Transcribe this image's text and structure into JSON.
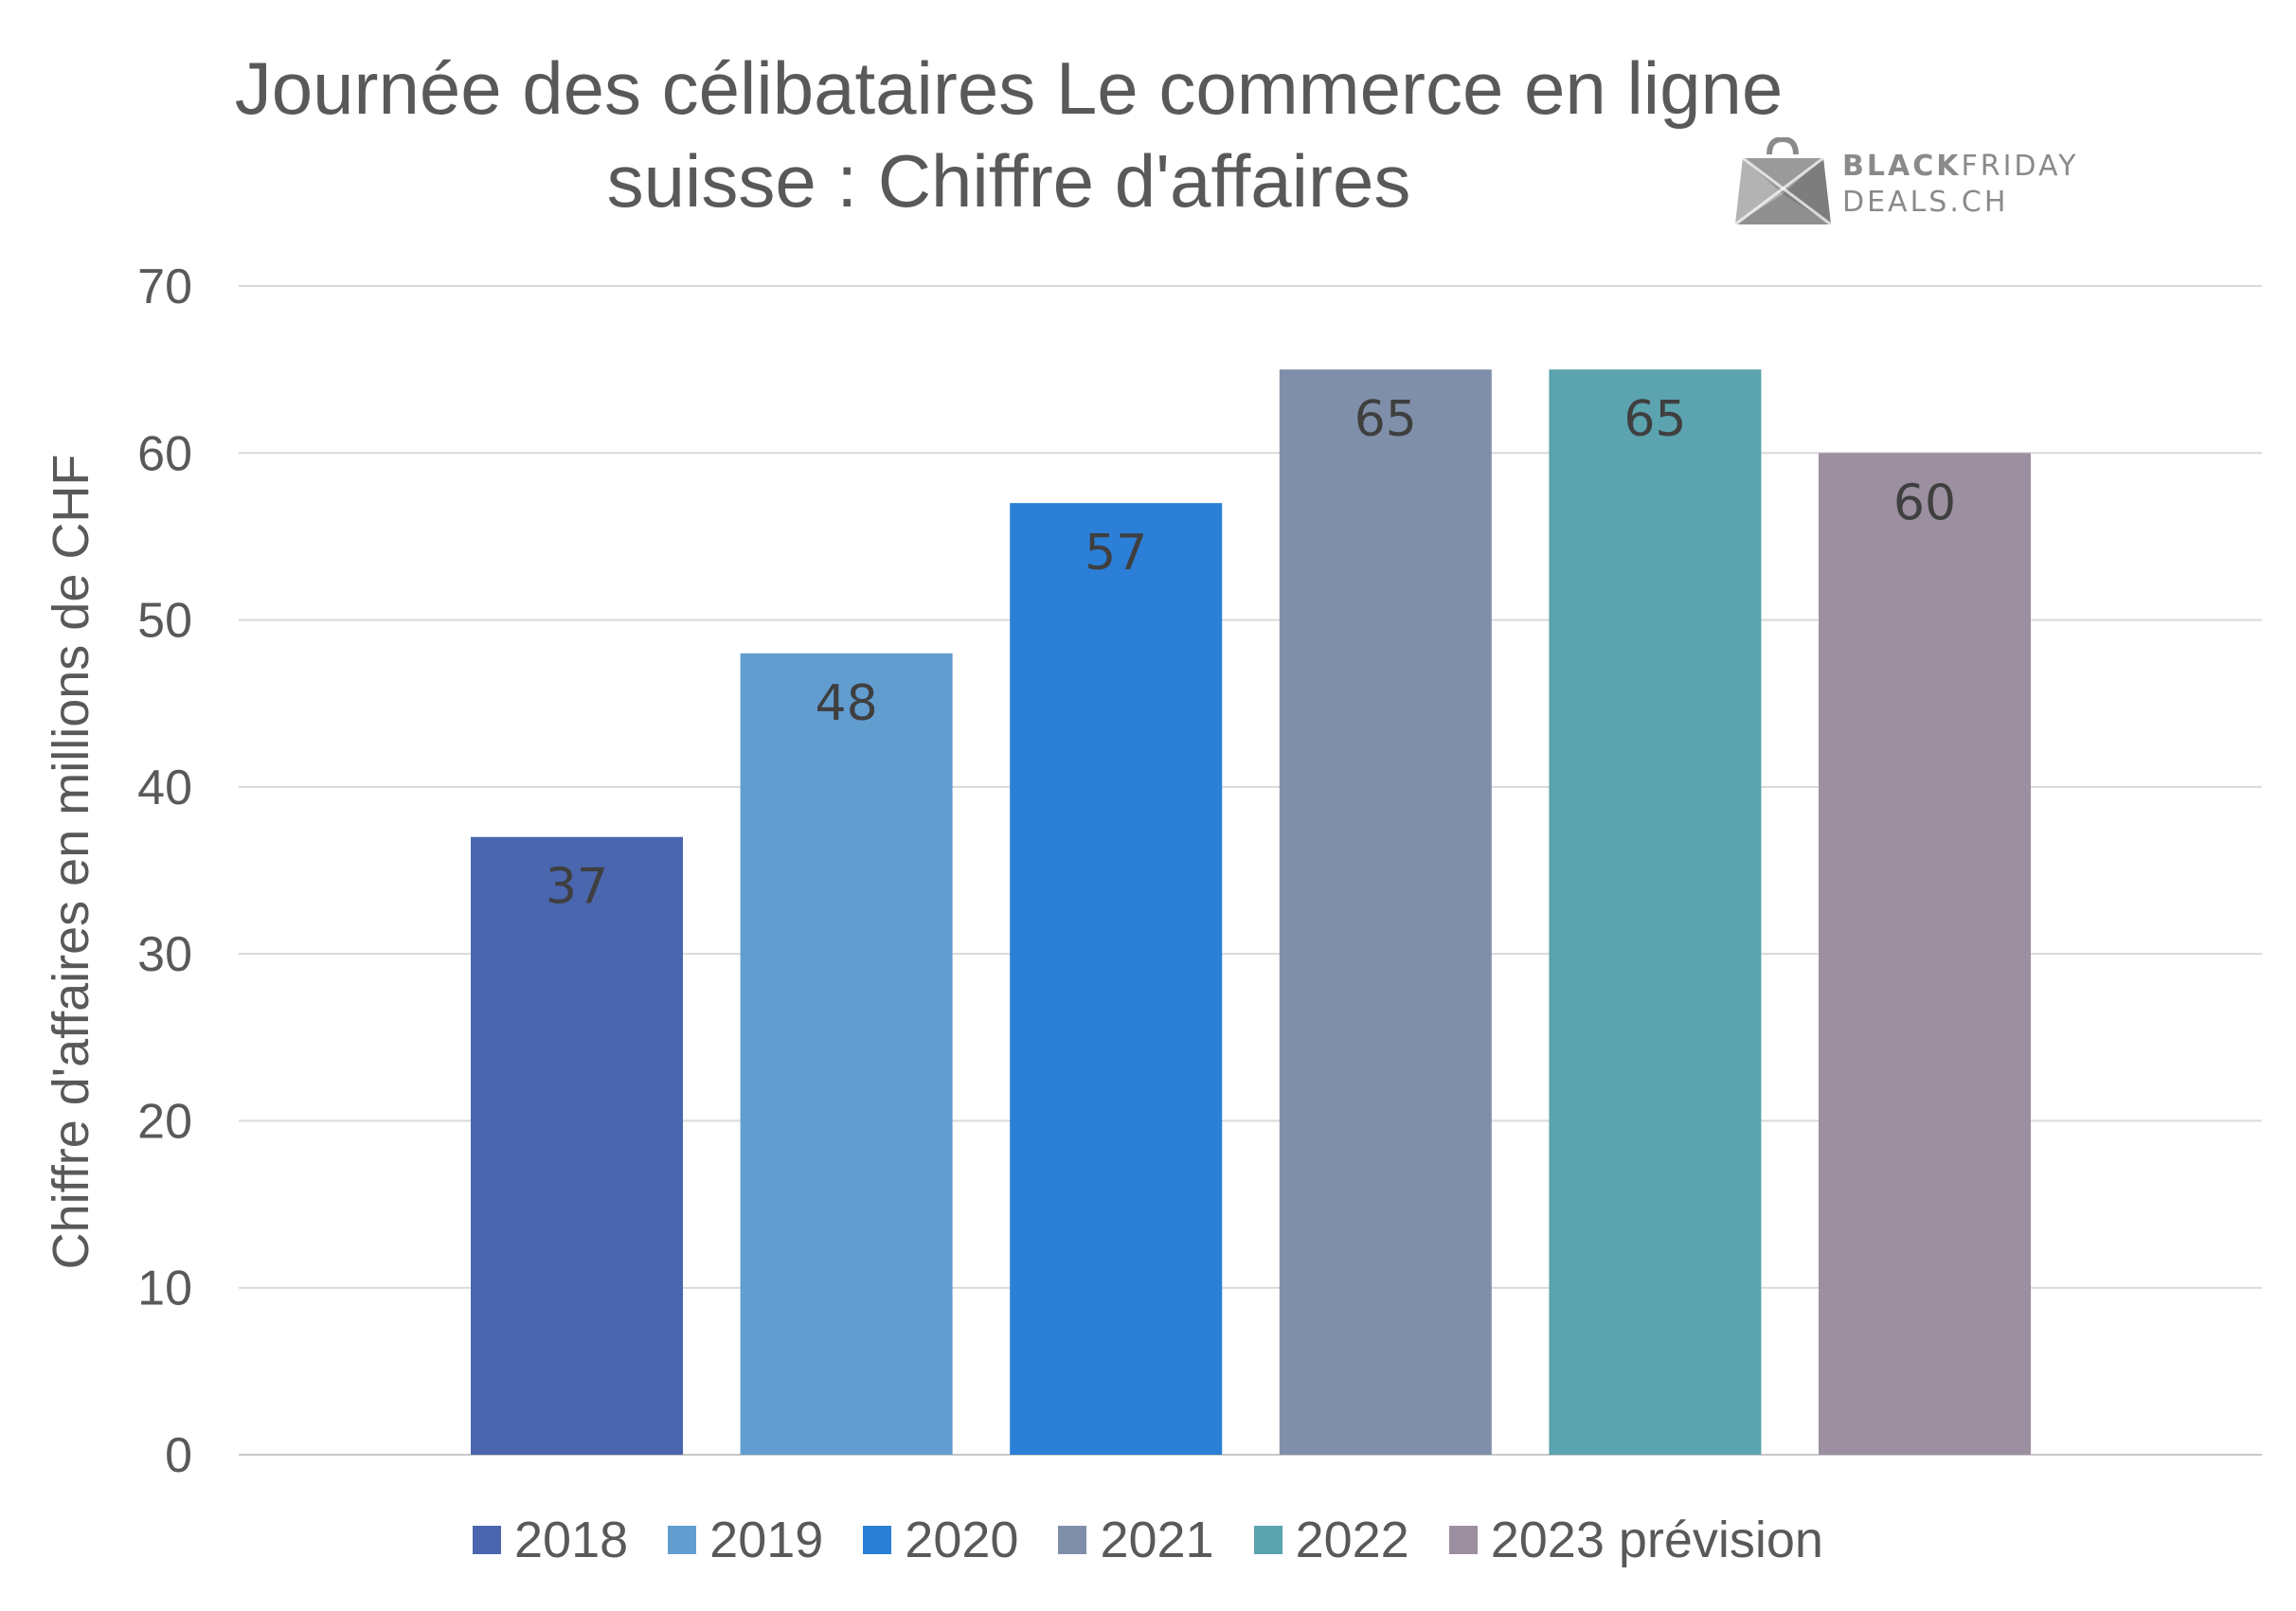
{
  "chart_data": {
    "type": "bar",
    "title_lines": [
      "Journée des célibataires Le commerce en ligne",
      "suisse : Chiffre d'affaires"
    ],
    "ylabel": "Chiffre d'affaires en millions de CHF",
    "xlabel": "",
    "ylim": [
      0,
      70
    ],
    "yticks": [
      0,
      10,
      20,
      30,
      40,
      50,
      60,
      70
    ],
    "grid": true,
    "legend_position": "bottom",
    "categories": [
      "2018",
      "2019",
      "2020",
      "2021",
      "2022",
      "2023 prévision"
    ],
    "values": [
      37,
      48,
      57,
      65,
      65,
      60
    ],
    "data_labels": [
      "37",
      "48",
      "57",
      "65",
      "65",
      "60"
    ],
    "colors": [
      "#4a66ae",
      "#629dd0",
      "#2b7fd6",
      "#7f8fa9",
      "#5ba3af",
      "#9b8fa0"
    ]
  },
  "logo": {
    "name": "black-friday-deals-logo",
    "line1_bold": "BLACK",
    "line1_rest": "FRIDAY",
    "line2": "DEALS.CH"
  },
  "style": {
    "grid_color": "#d9d9d9",
    "text_color": "#595959",
    "label_color": "#3f3f3f"
  }
}
